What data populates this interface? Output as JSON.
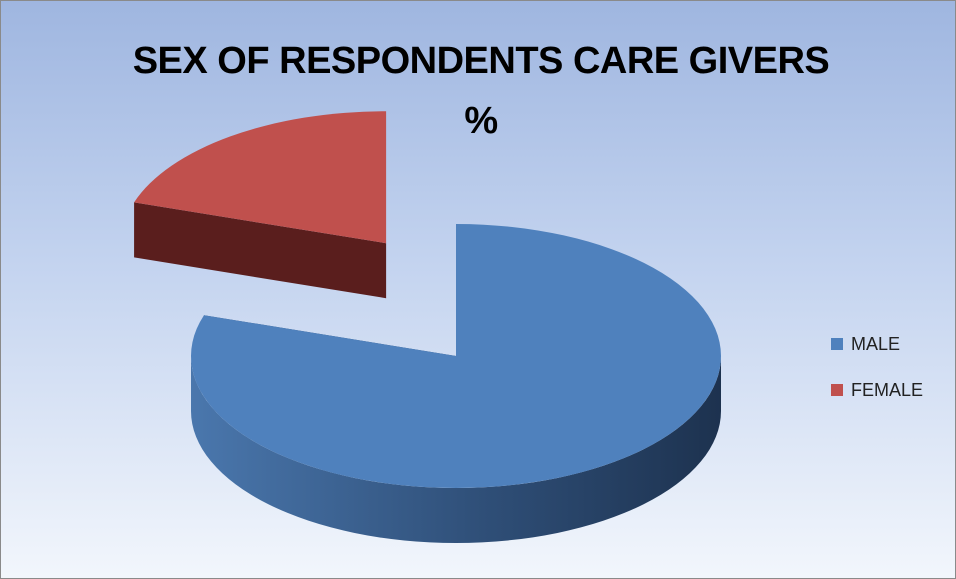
{
  "chart_data": {
    "type": "pie",
    "title_line1": "SEX OF RESPONDENTS CARE GIVERS",
    "title_line2": "%",
    "categories": [
      "MALE",
      "FEMALE"
    ],
    "values": [
      80,
      20
    ],
    "colors": [
      "#4f81bd",
      "#c0504d"
    ],
    "side_colors": [
      "#2c4a70",
      "#5a1e1d"
    ],
    "legend_position": "right",
    "exploded": "FEMALE"
  }
}
